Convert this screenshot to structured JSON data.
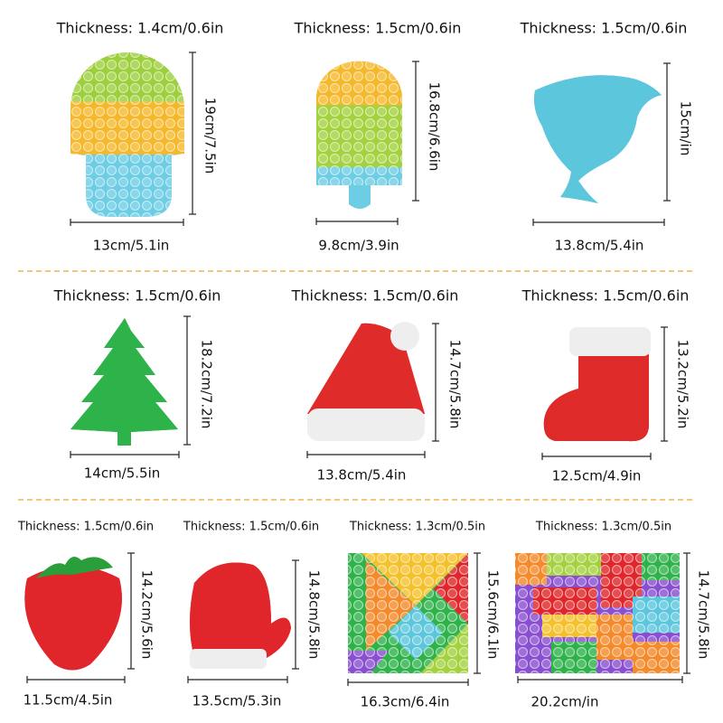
{
  "items": [
    {
      "thickness": "Thickness: 1.4cm/0.6in",
      "height": "19cm/7.5in",
      "width": "13cm/5.1in"
    },
    {
      "thickness": "Thickness: 1.5cm/0.6in",
      "height": "16.8cm/6.6in",
      "width": "9.8cm/3.9in"
    },
    {
      "thickness": "Thickness: 1.5cm/0.6in",
      "height": "15cm/in",
      "width": "13.8cm/5.4in"
    },
    {
      "thickness": "Thickness: 1.5cm/0.6in",
      "height": "18.2cm/7.2in",
      "width": "14cm/5.5in"
    },
    {
      "thickness": "Thickness: 1.5cm/0.6in",
      "height": "14.7cm/5.8in",
      "width": "13.8cm/5.4in"
    },
    {
      "thickness": "Thickness: 1.5cm/0.6in",
      "height": "13.2cm/5.2in",
      "width": "12.5cm/4.9in"
    },
    {
      "thickness": "Thickness: 1.5cm/0.6in",
      "height": "14.2cm/5.6in",
      "width": "11.5cm/4.5in"
    },
    {
      "thickness": "Thickness: 1.5cm/0.6in",
      "height": "14.8cm/5.8in",
      "width": "13.5cm/5.3in"
    },
    {
      "thickness": "Thickness: 1.3cm/0.5in",
      "height": "15.6cm/6.1in",
      "width": "16.3cm/6.4in"
    },
    {
      "thickness": "Thickness: 1.3cm/0.5in",
      "height": "14.7cm/5.8in",
      "width": "20.2cm/in"
    }
  ]
}
